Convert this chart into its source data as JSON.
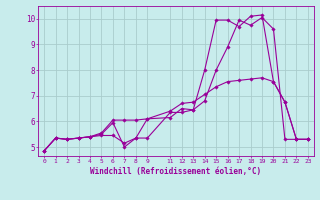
{
  "title": "",
  "xlabel": "Windchill (Refroidissement éolien,°C)",
  "ylabel": "",
  "bg_color": "#c8ecec",
  "line_color": "#990099",
  "grid_color": "#aacccc",
  "xlim": [
    -0.5,
    23.5
  ],
  "ylim": [
    4.65,
    10.5
  ],
  "xticks": [
    0,
    1,
    2,
    3,
    4,
    5,
    6,
    7,
    8,
    9,
    11,
    12,
    13,
    14,
    15,
    16,
    17,
    18,
    19,
    20,
    21,
    22,
    23
  ],
  "yticks": [
    5,
    6,
    7,
    8,
    9,
    10
  ],
  "series": [
    {
      "x": [
        0,
        1,
        2,
        3,
        4,
        5,
        6,
        7,
        8,
        9,
        11,
        12,
        13,
        14,
        15,
        16,
        17,
        18,
        19,
        20,
        21,
        22,
        23
      ],
      "y": [
        4.85,
        5.35,
        5.3,
        5.35,
        5.4,
        5.45,
        5.45,
        5.15,
        5.35,
        5.35,
        6.35,
        6.35,
        6.45,
        6.8,
        8.0,
        8.9,
        9.95,
        9.75,
        10.05,
        9.6,
        5.3,
        5.3,
        5.3
      ]
    },
    {
      "x": [
        0,
        1,
        2,
        3,
        4,
        5,
        6,
        7,
        8,
        9,
        11,
        12,
        13,
        14,
        15,
        16,
        17,
        18,
        19,
        20,
        21,
        22,
        23
      ],
      "y": [
        4.85,
        5.35,
        5.3,
        5.35,
        5.4,
        5.5,
        5.95,
        5.0,
        5.35,
        6.1,
        6.15,
        6.5,
        6.45,
        8.0,
        9.95,
        9.95,
        9.7,
        10.1,
        10.15,
        7.55,
        6.75,
        5.3,
        5.3
      ]
    },
    {
      "x": [
        0,
        1,
        2,
        3,
        4,
        5,
        6,
        7,
        8,
        9,
        11,
        12,
        13,
        14,
        15,
        16,
        17,
        18,
        19,
        20,
        21,
        22,
        23
      ],
      "y": [
        4.85,
        5.35,
        5.3,
        5.35,
        5.4,
        5.55,
        6.05,
        6.05,
        6.05,
        6.1,
        6.4,
        6.7,
        6.75,
        7.05,
        7.35,
        7.55,
        7.6,
        7.65,
        7.7,
        7.55,
        6.75,
        5.3,
        5.3
      ]
    }
  ]
}
